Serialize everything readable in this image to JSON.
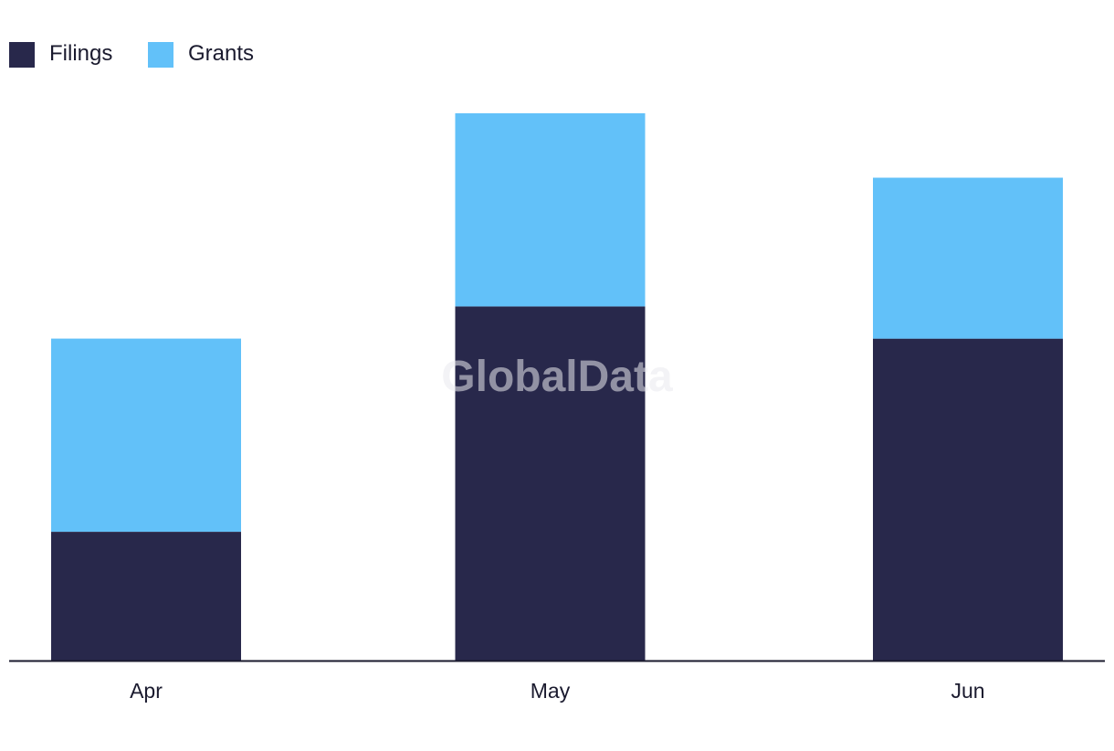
{
  "chart_data": {
    "type": "bar",
    "stacked": true,
    "categories": [
      "Apr",
      "May",
      "Jun"
    ],
    "series": [
      {
        "name": "Filings",
        "values": [
          4,
          11,
          10
        ],
        "color": "#28284b"
      },
      {
        "name": "Grants",
        "values": [
          6,
          6,
          5
        ],
        "color": "#62c1f9"
      }
    ],
    "ylim": [
      0,
      17
    ],
    "grid": false,
    "legend": "top-left",
    "watermark": "GlobalData"
  }
}
